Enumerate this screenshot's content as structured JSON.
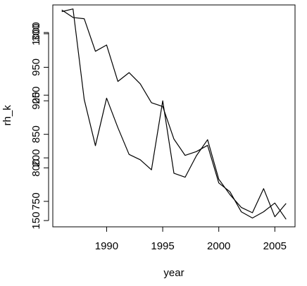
{
  "chart_data": {
    "type": "line",
    "title": "",
    "xlabel": "year",
    "ylabel_left": "rh",
    "ylabel_right": "_k",
    "xlim": [
      1985.2,
      2006.8
    ],
    "x_ticks": [
      1990,
      1995,
      2000,
      2005
    ],
    "y_ticks_left": [
      {
        "v": 300,
        "label": "300"
      },
      {
        "v": 250,
        "label": "250"
      },
      {
        "v": 200,
        "label": "200"
      },
      {
        "v": 150,
        "label": "150"
      }
    ],
    "y_ticks_right": [
      {
        "v": 1000,
        "label": "1000"
      },
      {
        "v": 950,
        "label": "950"
      },
      {
        "v": 900,
        "label": "900"
      },
      {
        "v": 850,
        "label": "850"
      },
      {
        "v": 800,
        "label": "800"
      },
      {
        "v": 750,
        "label": "750"
      }
    ],
    "ylim_left": [
      145,
      322
    ],
    "ylim_right": [
      712,
      1043
    ],
    "grid": false,
    "legend": "none",
    "series": [
      {
        "axis": "left",
        "x": [
          1986,
          1987,
          1988,
          1989,
          1990,
          1991,
          1992,
          1993,
          1994,
          1995,
          1996,
          1997,
          1998,
          1999,
          2000,
          2001,
          2002,
          2003,
          2004,
          2005,
          2006
        ],
        "y": [
          318,
          312,
          311,
          285,
          290,
          261,
          268,
          259,
          244,
          241,
          215,
          202,
          205,
          210,
          180,
          173,
          157,
          152,
          157,
          164,
          151
        ]
      },
      {
        "axis": "right",
        "x": [
          1986,
          1987,
          1988,
          1989,
          1990,
          1991,
          1992,
          1993,
          1994,
          1995,
          1996,
          1997,
          1998,
          1999,
          2000,
          2001,
          2002,
          2003,
          2004,
          2005,
          2006
        ],
        "y": [
          1033,
          1037,
          902,
          833,
          904,
          860,
          820,
          812,
          797,
          900,
          792,
          786,
          818,
          842,
          783,
          760,
          741,
          733,
          769,
          727,
          747
        ]
      }
    ]
  }
}
